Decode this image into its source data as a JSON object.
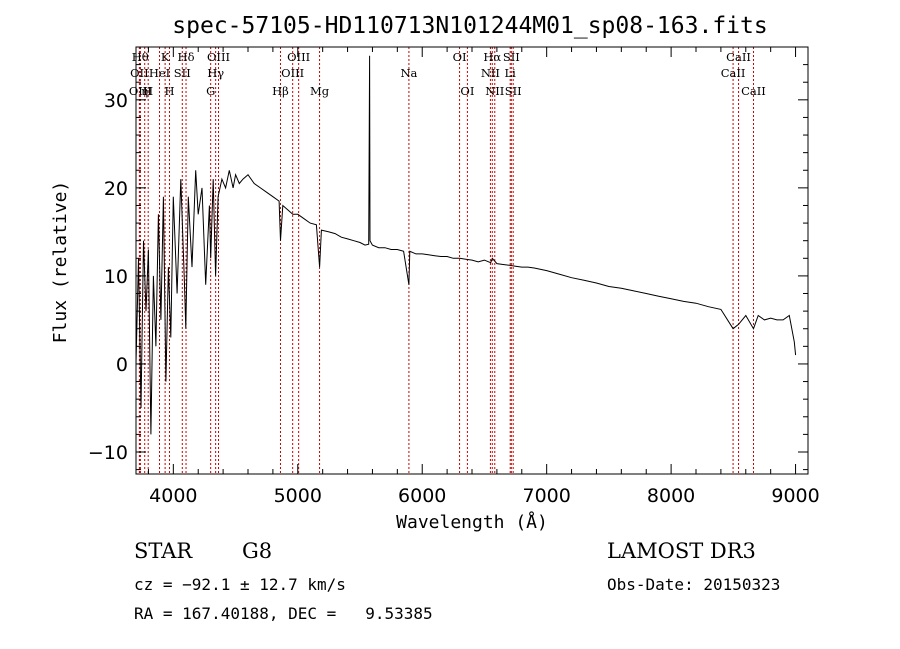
{
  "chart_data": {
    "type": "line",
    "title": "spec-57105-HD110713N101244M01_sp08-163.fits",
    "xlabel": "Wavelength (Å)",
    "ylabel": "Flux (relative)",
    "xlim": [
      3700,
      9100
    ],
    "ylim": [
      -12.5,
      36
    ],
    "xticks": [
      4000,
      5000,
      6000,
      7000,
      8000,
      9000
    ],
    "yticks": [
      -10,
      0,
      10,
      20,
      30
    ],
    "grid": false,
    "series": [
      {
        "name": "spectrum",
        "x": [
          3700,
          3720,
          3740,
          3760,
          3780,
          3800,
          3820,
          3840,
          3860,
          3880,
          3900,
          3920,
          3940,
          3960,
          3980,
          4000,
          4030,
          4060,
          4090,
          4100,
          4120,
          4150,
          4180,
          4200,
          4230,
          4260,
          4290,
          4300,
          4320,
          4340,
          4360,
          4390,
          4420,
          4450,
          4480,
          4500,
          4530,
          4560,
          4600,
          4650,
          4700,
          4750,
          4800,
          4850,
          4861,
          4880,
          4920,
          4960,
          5000,
          5050,
          5100,
          5150,
          5175,
          5190,
          5250,
          5300,
          5350,
          5400,
          5450,
          5500,
          5540,
          5570,
          5577,
          5580,
          5600,
          5650,
          5700,
          5750,
          5800,
          5850,
          5893,
          5900,
          5950,
          6000,
          6050,
          6100,
          6150,
          6200,
          6250,
          6300,
          6350,
          6400,
          6450,
          6500,
          6550,
          6563,
          6600,
          6650,
          6700,
          6750,
          6800,
          6850,
          6900,
          7000,
          7100,
          7200,
          7300,
          7400,
          7500,
          7600,
          7700,
          7800,
          7900,
          8000,
          8100,
          8200,
          8300,
          8400,
          8498,
          8542,
          8600,
          8662,
          8700,
          8750,
          8800,
          8850,
          8900,
          8950,
          8990,
          9000
        ],
        "y": [
          0,
          12,
          -5,
          14,
          6,
          13,
          -8,
          10,
          2,
          17,
          5,
          19,
          -2,
          11,
          3,
          19,
          8,
          21,
          9,
          4,
          19,
          11,
          22,
          17,
          20,
          9,
          18,
          12,
          21,
          10,
          19,
          21,
          20,
          22,
          20,
          21.5,
          20.5,
          21,
          21.5,
          20.5,
          20,
          19.5,
          19,
          18.5,
          14,
          18,
          17.5,
          17,
          17,
          16.5,
          16,
          15.8,
          11,
          15.2,
          15,
          14.8,
          14.4,
          14.2,
          14,
          13.8,
          13.5,
          13.6,
          35,
          14,
          13.5,
          13.2,
          13.2,
          13,
          13,
          12.8,
          9,
          12.8,
          12.5,
          12.5,
          12.4,
          12.3,
          12.2,
          12.2,
          12,
          12,
          11.9,
          11.8,
          11.6,
          11.8,
          11.5,
          12,
          11.4,
          11.3,
          11.2,
          11.1,
          11,
          11,
          10.9,
          10.6,
          10.2,
          9.8,
          9.5,
          9.2,
          8.8,
          8.6,
          8.3,
          8,
          7.7,
          7.4,
          7.1,
          6.9,
          6.5,
          6.2,
          4,
          4.5,
          5.5,
          4,
          5.5,
          5,
          5.2,
          5,
          5,
          5.5,
          2.5,
          1
        ]
      }
    ],
    "lines": [
      {
        "wavelength": 3734,
        "label": "Hθ",
        "row": 0
      },
      {
        "wavelength": 3727,
        "label": "OII",
        "row": 1
      },
      {
        "wavelength": 3735,
        "label": "OIII",
        "row": 2
      },
      {
        "wavelength": 3770,
        "label": "η",
        "row": 2
      },
      {
        "wavelength": 3798,
        "label": "H",
        "row": 2
      },
      {
        "wavelength": 3889,
        "label": "HeI",
        "row": 1
      },
      {
        "wavelength": 3934,
        "label": "K",
        "row": 0
      },
      {
        "wavelength": 3969,
        "label": "H",
        "row": 2
      },
      {
        "wavelength": 4072,
        "label": "SII",
        "row": 1
      },
      {
        "wavelength": 4102,
        "label": "Hδ",
        "row": 0
      },
      {
        "wavelength": 4300,
        "label": "G",
        "row": 2
      },
      {
        "wavelength": 4340,
        "label": "Hγ",
        "row": 1
      },
      {
        "wavelength": 4363,
        "label": "OIII",
        "row": 0
      },
      {
        "wavelength": 4861,
        "label": "Hβ",
        "row": 2
      },
      {
        "wavelength": 4959,
        "label": "OIII",
        "row": 1
      },
      {
        "wavelength": 5007,
        "label": "OIII",
        "row": 0
      },
      {
        "wavelength": 5175,
        "label": "Mg",
        "row": 2
      },
      {
        "wavelength": 5893,
        "label": "Na",
        "row": 1
      },
      {
        "wavelength": 6300,
        "label": "OI",
        "row": 0
      },
      {
        "wavelength": 6363,
        "label": "OI",
        "row": 2
      },
      {
        "wavelength": 6548,
        "label": "NII",
        "row": 1
      },
      {
        "wavelength": 6563,
        "label": "Hα",
        "row": 0
      },
      {
        "wavelength": 6583,
        "label": "NII",
        "row": 2
      },
      {
        "wavelength": 6707,
        "label": "Li",
        "row": 1
      },
      {
        "wavelength": 6716,
        "label": "SII",
        "row": 0
      },
      {
        "wavelength": 6731,
        "label": "SII",
        "row": 2
      },
      {
        "wavelength": 8498,
        "label": "CaII",
        "row": 1
      },
      {
        "wavelength": 8542,
        "label": "CaII",
        "row": 0
      },
      {
        "wavelength": 8662,
        "label": "CaII",
        "row": 2
      }
    ]
  },
  "info": {
    "class": "STAR",
    "subclass": "G8",
    "survey": "LAMOST DR3",
    "cz": "cz = −92.1 ± 12.7 km/s",
    "obs_date": "Obs-Date: 20150323",
    "coords": "RA = 167.40188, DEC =   9.53385"
  },
  "colors": {
    "spectrum": "#000000",
    "line_markers": "#cc0000",
    "axes": "#000000",
    "background": "#ffffff"
  }
}
